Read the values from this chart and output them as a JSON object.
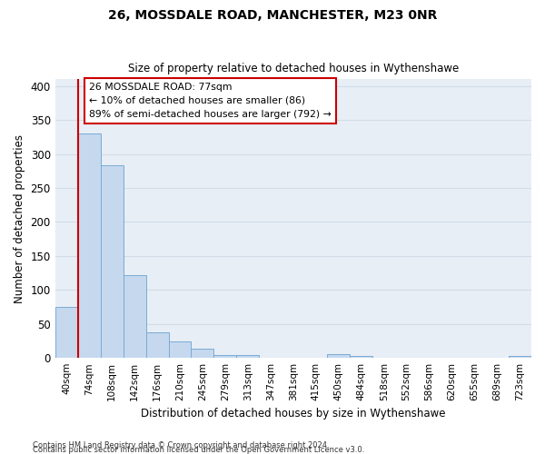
{
  "title1": "26, MOSSDALE ROAD, MANCHESTER, M23 0NR",
  "title2": "Size of property relative to detached houses in Wythenshawe",
  "xlabel": "Distribution of detached houses by size in Wythenshawe",
  "ylabel": "Number of detached properties",
  "footnote1": "Contains HM Land Registry data © Crown copyright and database right 2024.",
  "footnote2": "Contains public sector information licensed under the Open Government Licence v3.0.",
  "bar_labels": [
    "40sqm",
    "74sqm",
    "108sqm",
    "142sqm",
    "176sqm",
    "210sqm",
    "245sqm",
    "279sqm",
    "313sqm",
    "347sqm",
    "381sqm",
    "415sqm",
    "450sqm",
    "484sqm",
    "518sqm",
    "552sqm",
    "586sqm",
    "620sqm",
    "655sqm",
    "689sqm",
    "723sqm"
  ],
  "bar_values": [
    75,
    330,
    283,
    122,
    37,
    24,
    13,
    4,
    4,
    0,
    0,
    0,
    5,
    3,
    0,
    0,
    0,
    0,
    0,
    0,
    3
  ],
  "bar_color": "#c5d8ee",
  "bar_edge_color": "#7aabd4",
  "annotation_title": "26 MOSSDALE ROAD: 77sqm",
  "annotation_line1": "← 10% of detached houses are smaller (86)",
  "annotation_line2": "89% of semi-detached houses are larger (792) →",
  "vline_color": "#cc0000",
  "annotation_box_edgecolor": "#cc0000",
  "ylim_max": 410,
  "yticks": [
    0,
    50,
    100,
    150,
    200,
    250,
    300,
    350,
    400
  ],
  "grid_color": "#d0dce8",
  "bg_color": "#e8eef6",
  "bar_width": 1.0
}
